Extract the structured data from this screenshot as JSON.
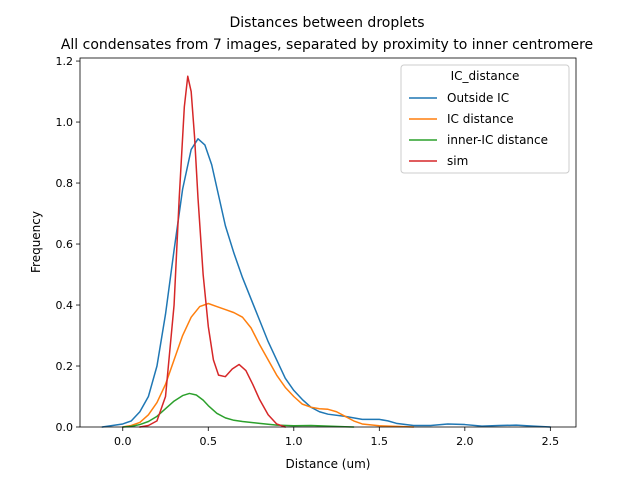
{
  "chart_data": {
    "type": "line",
    "title": "Distances between droplets",
    "subtitle": "All condensates from 7 images, separated by proximity to inner centromere",
    "xlabel": "Distance (um)",
    "ylabel": "Frequency",
    "xlim": [
      -0.25,
      2.65
    ],
    "ylim": [
      0,
      1.21
    ],
    "xticks": [
      0.0,
      0.5,
      1.0,
      1.5,
      2.0,
      2.5
    ],
    "xtick_labels": [
      "0.0",
      "0.5",
      "1.0",
      "1.5",
      "2.0",
      "2.5"
    ],
    "yticks": [
      0.0,
      0.2,
      0.4,
      0.6,
      0.8,
      1.0,
      1.2
    ],
    "ytick_labels": [
      "0.0",
      "0.2",
      "0.4",
      "0.6",
      "0.8",
      "1.0",
      "1.2"
    ],
    "grid": false,
    "legend": {
      "title": "IC_distance",
      "placement": "top-right"
    },
    "series": [
      {
        "name": "Outside IC",
        "color": "#1f77b4",
        "points": [
          [
            -0.12,
            0.0
          ],
          [
            0.0,
            0.01
          ],
          [
            0.05,
            0.02
          ],
          [
            0.1,
            0.05
          ],
          [
            0.15,
            0.1
          ],
          [
            0.2,
            0.2
          ],
          [
            0.25,
            0.37
          ],
          [
            0.3,
            0.58
          ],
          [
            0.35,
            0.78
          ],
          [
            0.4,
            0.91
          ],
          [
            0.44,
            0.945
          ],
          [
            0.48,
            0.925
          ],
          [
            0.52,
            0.86
          ],
          [
            0.56,
            0.76
          ],
          [
            0.6,
            0.66
          ],
          [
            0.65,
            0.57
          ],
          [
            0.7,
            0.49
          ],
          [
            0.75,
            0.42
          ],
          [
            0.8,
            0.35
          ],
          [
            0.85,
            0.28
          ],
          [
            0.9,
            0.22
          ],
          [
            0.95,
            0.16
          ],
          [
            1.0,
            0.12
          ],
          [
            1.05,
            0.09
          ],
          [
            1.1,
            0.065
          ],
          [
            1.15,
            0.05
          ],
          [
            1.2,
            0.042
          ],
          [
            1.3,
            0.035
          ],
          [
            1.4,
            0.025
          ],
          [
            1.5,
            0.025
          ],
          [
            1.55,
            0.02
          ],
          [
            1.6,
            0.012
          ],
          [
            1.7,
            0.005
          ],
          [
            1.8,
            0.005
          ],
          [
            1.9,
            0.01
          ],
          [
            2.0,
            0.008
          ],
          [
            2.1,
            0.003
          ],
          [
            2.2,
            0.005
          ],
          [
            2.3,
            0.006
          ],
          [
            2.4,
            0.003
          ],
          [
            2.5,
            0.0
          ]
        ]
      },
      {
        "name": "IC distance",
        "color": "#ff7f0e",
        "points": [
          [
            0.0,
            0.0
          ],
          [
            0.05,
            0.005
          ],
          [
            0.1,
            0.015
          ],
          [
            0.15,
            0.04
          ],
          [
            0.2,
            0.08
          ],
          [
            0.25,
            0.14
          ],
          [
            0.3,
            0.22
          ],
          [
            0.35,
            0.3
          ],
          [
            0.4,
            0.36
          ],
          [
            0.45,
            0.395
          ],
          [
            0.5,
            0.405
          ],
          [
            0.55,
            0.395
          ],
          [
            0.6,
            0.385
          ],
          [
            0.65,
            0.375
          ],
          [
            0.7,
            0.36
          ],
          [
            0.75,
            0.325
          ],
          [
            0.8,
            0.27
          ],
          [
            0.85,
            0.22
          ],
          [
            0.9,
            0.17
          ],
          [
            0.95,
            0.13
          ],
          [
            1.0,
            0.1
          ],
          [
            1.05,
            0.075
          ],
          [
            1.1,
            0.065
          ],
          [
            1.15,
            0.06
          ],
          [
            1.2,
            0.058
          ],
          [
            1.25,
            0.05
          ],
          [
            1.3,
            0.035
          ],
          [
            1.35,
            0.02
          ],
          [
            1.4,
            0.01
          ],
          [
            1.5,
            0.004
          ],
          [
            1.6,
            0.002
          ],
          [
            1.7,
            0.0
          ]
        ]
      },
      {
        "name": "inner-IC distance",
        "color": "#2ca02c",
        "points": [
          [
            0.0,
            0.0
          ],
          [
            0.05,
            0.002
          ],
          [
            0.1,
            0.008
          ],
          [
            0.15,
            0.018
          ],
          [
            0.2,
            0.035
          ],
          [
            0.25,
            0.06
          ],
          [
            0.3,
            0.085
          ],
          [
            0.35,
            0.103
          ],
          [
            0.39,
            0.11
          ],
          [
            0.43,
            0.105
          ],
          [
            0.47,
            0.088
          ],
          [
            0.5,
            0.07
          ],
          [
            0.55,
            0.045
          ],
          [
            0.6,
            0.03
          ],
          [
            0.65,
            0.022
          ],
          [
            0.7,
            0.018
          ],
          [
            0.8,
            0.012
          ],
          [
            0.9,
            0.006
          ],
          [
            1.0,
            0.004
          ],
          [
            1.1,
            0.005
          ],
          [
            1.2,
            0.003
          ],
          [
            1.3,
            0.001
          ],
          [
            1.35,
            0.0
          ]
        ]
      },
      {
        "name": "sim",
        "color": "#d62728",
        "points": [
          [
            0.1,
            0.0
          ],
          [
            0.15,
            0.005
          ],
          [
            0.2,
            0.02
          ],
          [
            0.25,
            0.1
          ],
          [
            0.3,
            0.4
          ],
          [
            0.33,
            0.75
          ],
          [
            0.36,
            1.05
          ],
          [
            0.38,
            1.15
          ],
          [
            0.4,
            1.1
          ],
          [
            0.42,
            0.95
          ],
          [
            0.44,
            0.75
          ],
          [
            0.47,
            0.5
          ],
          [
            0.5,
            0.33
          ],
          [
            0.53,
            0.22
          ],
          [
            0.56,
            0.17
          ],
          [
            0.6,
            0.165
          ],
          [
            0.64,
            0.19
          ],
          [
            0.68,
            0.205
          ],
          [
            0.72,
            0.185
          ],
          [
            0.76,
            0.14
          ],
          [
            0.8,
            0.09
          ],
          [
            0.85,
            0.04
          ],
          [
            0.9,
            0.01
          ],
          [
            0.95,
            0.0
          ]
        ]
      }
    ]
  }
}
